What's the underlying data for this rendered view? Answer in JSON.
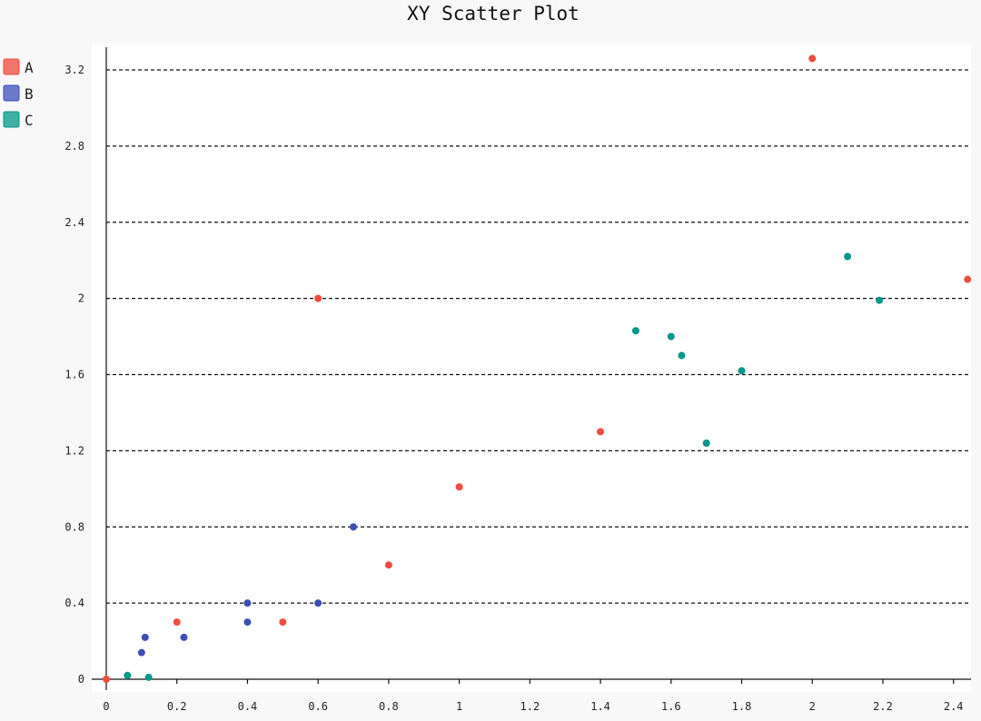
{
  "chart_data": {
    "type": "scatter",
    "title": "XY Scatter Plot",
    "xlabel": "",
    "ylabel": "",
    "xlim": [
      0,
      2.46
    ],
    "ylim": [
      0,
      3.3
    ],
    "x_ticks": [
      0,
      0.2,
      0.4,
      0.6,
      0.8,
      1,
      1.2,
      1.4,
      1.6,
      1.8,
      2,
      2.2,
      2.4
    ],
    "x_tick_labels": [
      "0",
      "0.2",
      "0.4",
      "0.6",
      "0.8",
      "1",
      "1.2",
      "1.4",
      "1.6",
      "1.8",
      "2",
      "2.2",
      "2.4"
    ],
    "y_ticks": [
      0,
      0.4,
      0.8,
      1.2,
      1.6,
      2,
      2.4,
      2.8,
      3.2
    ],
    "y_tick_labels": [
      "0",
      "0.4",
      "0.8",
      "1.2",
      "1.6",
      "2",
      "2.4",
      "2.8",
      "3.2"
    ],
    "grid": "horizontal dashed",
    "legend_position": "top-left",
    "series": [
      {
        "name": "A",
        "color": "#f04b3f",
        "legend_color": "#f2766c",
        "points": [
          [
            0,
            0
          ],
          [
            0.2,
            0.3
          ],
          [
            0.5,
            0.3
          ],
          [
            0.6,
            2.0
          ],
          [
            0.8,
            0.6
          ],
          [
            1.0,
            1.01
          ],
          [
            1.4,
            1.3
          ],
          [
            2.0,
            3.26
          ],
          [
            2.44,
            2.1
          ]
        ]
      },
      {
        "name": "B",
        "color": "#3c4fb5",
        "legend_color": "#6c7acb",
        "points": [
          [
            0.1,
            0.14
          ],
          [
            0.11,
            0.22
          ],
          [
            0.22,
            0.22
          ],
          [
            0.4,
            0.3
          ],
          [
            0.4,
            0.4
          ],
          [
            0.6,
            0.4
          ],
          [
            0.7,
            0.8
          ]
        ]
      },
      {
        "name": "C",
        "color": "#009688",
        "legend_color": "#3eb0a4",
        "points": [
          [
            0.06,
            0.02
          ],
          [
            0.12,
            0.01
          ],
          [
            1.5,
            1.83
          ],
          [
            1.6,
            1.8
          ],
          [
            1.63,
            1.7
          ],
          [
            1.7,
            1.24
          ],
          [
            1.8,
            1.62
          ],
          [
            2.1,
            2.22
          ],
          [
            2.19,
            1.99
          ]
        ]
      }
    ]
  }
}
